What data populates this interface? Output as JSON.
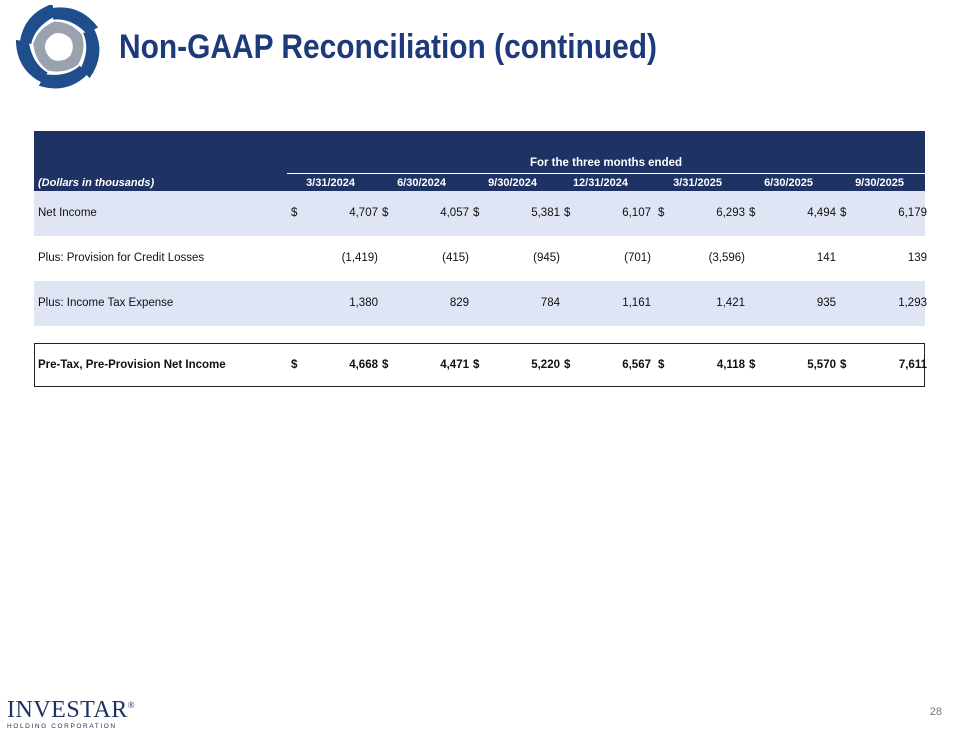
{
  "slide": {
    "title": "Non-GAAP Reconciliation (continued)",
    "page_number": "28"
  },
  "table": {
    "unit_label": "(Dollars in thousands)",
    "span_header": "For the three months ended",
    "columns": [
      "3/31/2024",
      "6/30/2024",
      "9/30/2024",
      "12/31/2024",
      "3/31/2025",
      "6/30/2025",
      "9/30/2025"
    ],
    "rows": [
      {
        "label": "Net Income",
        "currency": "$",
        "shaded": true,
        "values": [
          "4,707",
          "4,057",
          "5,381",
          "6,107",
          "6,293",
          "4,494",
          "6,179"
        ]
      },
      {
        "label": "Plus: Provision for Credit Losses",
        "currency": "",
        "shaded": false,
        "values": [
          "(1,419)",
          "(415)",
          "(945)",
          "(701)",
          "(3,596)",
          "141",
          "139"
        ]
      },
      {
        "label": "Plus: Income Tax Expense",
        "currency": "",
        "shaded": true,
        "values": [
          "1,380",
          "829",
          "784",
          "1,161",
          "1,421",
          "935",
          "1,293"
        ]
      }
    ],
    "total": {
      "label": "Pre-Tax, Pre-Provision Net Income",
      "currency": "$",
      "values": [
        "4,668",
        "4,471",
        "5,220",
        "6,567",
        "4,118",
        "5,570",
        "7,611"
      ]
    }
  },
  "footer": {
    "brand_name": "INVESTAR",
    "brand_reg": "®",
    "brand_sub": "HOLDING CORPORATION"
  },
  "colors": {
    "title": "#1f3a7a",
    "header_bg": "#1f3264",
    "row_shade": "#dfe5f5",
    "logo_blue": "#1f4e8c",
    "logo_gray": "#9aa2ad"
  },
  "icons": {
    "logo": "pinwheel-logo-icon"
  }
}
